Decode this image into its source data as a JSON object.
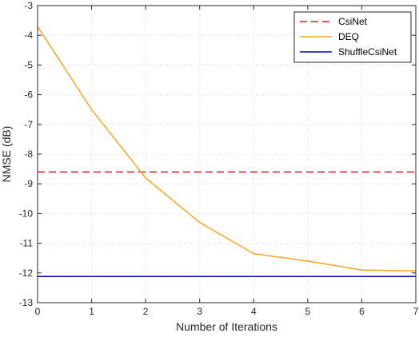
{
  "chart_data": {
    "type": "line",
    "title": "",
    "xlabel": "Number of Iterations",
    "ylabel": "NMSE (dB)",
    "xlim": [
      0,
      7
    ],
    "ylim": [
      -13,
      -3
    ],
    "xticks": [
      0,
      1,
      2,
      3,
      4,
      5,
      6,
      7
    ],
    "yticks": [
      -13,
      -12,
      -11,
      -10,
      -9,
      -8,
      -7,
      -6,
      -5,
      -4,
      -3
    ],
    "grid": true,
    "legend_position": "top-right",
    "series": [
      {
        "name": "CsiNet",
        "style": "dashed",
        "color": "#e41a1c",
        "x": [
          0,
          7
        ],
        "y": [
          -8.6,
          -8.6
        ]
      },
      {
        "name": "DEQ",
        "style": "solid",
        "color": "#f5a623",
        "x": [
          0,
          1,
          2,
          3,
          4,
          5,
          6,
          7
        ],
        "y": [
          -3.7,
          -6.5,
          -8.8,
          -10.3,
          -11.35,
          -11.6,
          -11.9,
          -11.93
        ]
      },
      {
        "name": "ShuffleCsiNet",
        "style": "solid",
        "color": "#0000c8",
        "x": [
          0,
          7
        ],
        "y": [
          -12.12,
          -12.12
        ]
      }
    ]
  }
}
